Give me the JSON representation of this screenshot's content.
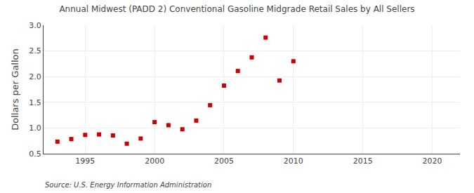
{
  "chart_data": {
    "type": "scatter",
    "title": "Annual Midwest (PADD 2) Conventional Gasoline Midgrade Retail Sales by All Sellers",
    "ylabel": "Dollars per Gallon",
    "annotations": [
      "Source: U.S. Energy Information Administration"
    ],
    "x": [
      1993,
      1994,
      1995,
      1996,
      1997,
      1998,
      1999,
      2000,
      2001,
      2002,
      2003,
      2004,
      2005,
      2006,
      2007,
      2008,
      2009,
      2010
    ],
    "values": [
      0.735,
      0.785,
      0.865,
      0.875,
      0.855,
      0.695,
      0.795,
      1.115,
      1.055,
      0.975,
      1.145,
      1.445,
      1.825,
      2.11,
      2.375,
      2.76,
      1.925,
      2.3
    ],
    "color": "#cc0000",
    "marker": "square",
    "xlim": [
      1992,
      2022
    ],
    "xticks": [
      1995,
      2000,
      2005,
      2010,
      2015,
      2020
    ],
    "ylim": [
      0.5,
      3.0
    ],
    "yticks": [
      0.5,
      {
        "value": 1.0,
        "label": "1.0"
      },
      1.5,
      {
        "value": 2.0,
        "label": "2.0"
      },
      2.5,
      {
        "value": 3.0,
        "label": "3.0"
      }
    ],
    "grid": true
  }
}
